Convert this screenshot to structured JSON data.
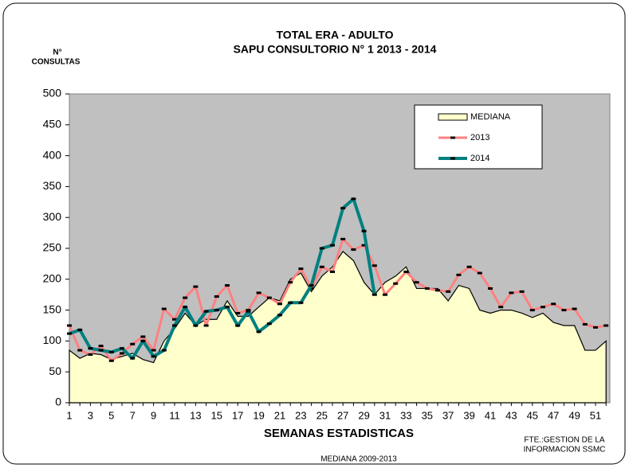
{
  "chart_data": {
    "type": "line",
    "title": "TOTAL ERA - ADULTO",
    "subtitle": "SAPU CONSULTORIO N° 1   2013 - 2014",
    "y_label": [
      "N°",
      "CONSULTAS"
    ],
    "x_label": "SEMANAS ESTADISTICAS",
    "annotations": [
      "FTE.:GESTION DE LA",
      "INFORMACION SSMC",
      "MEDIANA 2009-2013"
    ],
    "categories": [
      1,
      null,
      3,
      null,
      5,
      null,
      7,
      null,
      9,
      null,
      11,
      null,
      13,
      null,
      15,
      null,
      17,
      null,
      19,
      null,
      21,
      null,
      23,
      null,
      25,
      null,
      27,
      null,
      29,
      null,
      31,
      null,
      33,
      null,
      35,
      null,
      37,
      null,
      39,
      null,
      41,
      null,
      43,
      null,
      45,
      null,
      47,
      null,
      49,
      null,
      51,
      null
    ],
    "ylim": [
      0,
      500
    ],
    "yticks": [
      0,
      50,
      100,
      150,
      200,
      250,
      300,
      350,
      400,
      450,
      500
    ],
    "grid": false,
    "legend": "upper right",
    "background": "#c0c0c0",
    "series": [
      {
        "name": "MEDIANA",
        "color": "#ffffcc",
        "kind": "area",
        "values": [
          85,
          72,
          80,
          78,
          70,
          75,
          80,
          70,
          65,
          100,
          120,
          145,
          125,
          135,
          135,
          165,
          140,
          140,
          155,
          170,
          165,
          200,
          210,
          180,
          205,
          220,
          245,
          230,
          195,
          175,
          195,
          205,
          220,
          185,
          185,
          185,
          165,
          190,
          185,
          150,
          145,
          150,
          150,
          145,
          138,
          145,
          130,
          125,
          125,
          85,
          85,
          100
        ]
      },
      {
        "name": "2013",
        "color": "#ff8080",
        "kind": "line",
        "values": [
          125,
          85,
          78,
          92,
          68,
          80,
          95,
          107,
          85,
          152,
          135,
          170,
          188,
          125,
          172,
          190,
          145,
          150,
          178,
          170,
          160,
          195,
          217,
          185,
          220,
          212,
          265,
          248,
          255,
          222,
          175,
          193,
          212,
          195,
          185,
          182,
          180,
          207,
          220,
          210,
          185,
          155,
          178,
          180,
          150,
          155,
          160,
          150,
          152,
          127,
          122,
          125
        ]
      },
      {
        "name": "2014",
        "color": "#008080",
        "kind": "line",
        "values": [
          112,
          118,
          88,
          85,
          82,
          88,
          72,
          100,
          75,
          85,
          125,
          155,
          125,
          148,
          150,
          155,
          125,
          148,
          115,
          128,
          142,
          162,
          162,
          190,
          250,
          255,
          315,
          330,
          278,
          175,
          null,
          null,
          null,
          null,
          null,
          null,
          null,
          null,
          null,
          null,
          null,
          null,
          null,
          null,
          null,
          null,
          null,
          null,
          null,
          null,
          null,
          null
        ]
      }
    ]
  }
}
